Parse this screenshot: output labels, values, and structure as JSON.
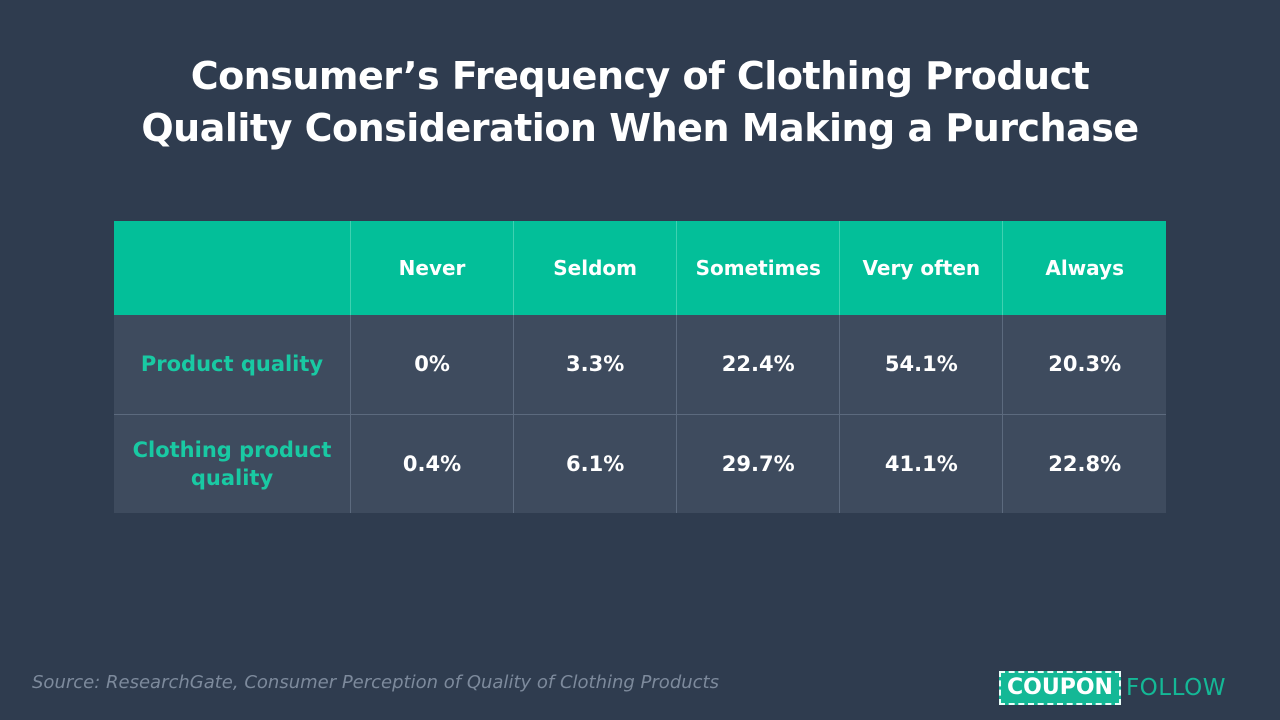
{
  "title": {
    "line1": "Consumer’s Frequency of Clothing Product",
    "line2": "Quality Consideration When Making a Purchase"
  },
  "chart_data": {
    "type": "table",
    "columns": [
      "Never",
      "Seldom",
      "Sometimes",
      "Very often",
      "Always"
    ],
    "rows": [
      {
        "label": "Product quality",
        "values": [
          "0%",
          "3.3%",
          "22.4%",
          "54.1%",
          "20.3%"
        ]
      },
      {
        "label": "Clothing product quality",
        "values": [
          "0.4%",
          "6.1%",
          "29.7%",
          "41.1%",
          "22.8%"
        ]
      }
    ]
  },
  "source": "Source: ResearchGate, Consumer Perception of Quality of Clothing Products",
  "logo": {
    "boxed": "COUPON",
    "rest": "FOLLOW"
  },
  "colors": {
    "background": "#2f3c4f",
    "header": "#03bf99",
    "accent": "#19c9a3",
    "row": "#3e4b5e"
  }
}
